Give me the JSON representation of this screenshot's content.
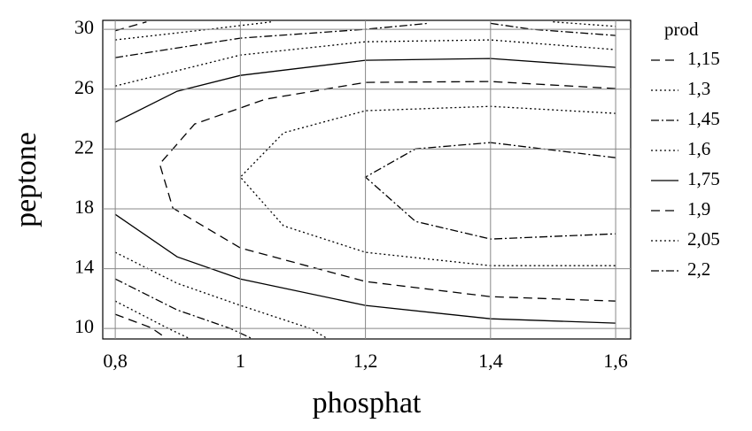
{
  "chart_data": {
    "type": "contour",
    "x_label": "phosphat",
    "y_label": "peptone",
    "legend_title": "prod",
    "xlim": [
      0.78,
      1.624
    ],
    "ylim": [
      9.3,
      30.6
    ],
    "xticks": [
      {
        "value": 0.8,
        "label": "0,8"
      },
      1,
      {
        "value": 1.2,
        "label": "1,2"
      },
      {
        "value": 1.4,
        "label": "1,4"
      },
      {
        "value": 1.6,
        "label": "1,6"
      }
    ],
    "yticks": [
      10,
      14,
      18,
      22,
      26,
      30
    ],
    "grid": true,
    "legend": "right",
    "color": "#000000",
    "series": [
      {
        "name": "1,15",
        "dash": "dashed",
        "x": [
          0.8,
          0.85,
          null,
          0.8,
          0.857,
          0.88
        ],
        "y": [
          29.9,
          30.5,
          null,
          10.95,
          10.06,
          9.4
        ]
      },
      {
        "name": "1,3",
        "dash": "dotted",
        "x": [
          0.8,
          0.95,
          1.05,
          null,
          1.5,
          1.6,
          null,
          0.8,
          0.885,
          0.92
        ],
        "y": [
          29.29,
          30.0,
          30.5,
          null,
          30.5,
          30.2,
          null,
          11.83,
          10.0,
          9.3
        ]
      },
      {
        "name": "1,45",
        "dash": "dashdot",
        "x": [
          0.8,
          1.0,
          1.2,
          1.3,
          null,
          1.4,
          1.466,
          1.6,
          null,
          0.8,
          0.899,
          0.984,
          1.02
        ],
        "y": [
          28.11,
          29.41,
          30.0,
          30.4,
          null,
          30.4,
          30.0,
          29.59,
          null,
          13.31,
          11.24,
          10.0,
          9.3
        ]
      },
      {
        "name": "1,6",
        "dash": "dotted",
        "x": [
          0.8,
          1.0,
          1.2,
          1.4,
          1.6,
          null,
          0.8,
          0.899,
          1.0,
          1.112,
          1.14
        ],
        "y": [
          26.21,
          28.28,
          29.17,
          29.29,
          28.64,
          null,
          15.09,
          13.02,
          11.54,
          10.0,
          9.3
        ]
      },
      {
        "name": "1,75",
        "dash": "solid",
        "x": [
          0.8,
          0.899,
          1.0,
          1.2,
          1.4,
          1.6,
          null,
          0.8,
          0.899,
          1.0,
          1.2,
          1.4,
          1.6
        ],
        "y": [
          23.79,
          25.86,
          26.92,
          27.93,
          28.05,
          27.46,
          null,
          17.63,
          14.79,
          13.31,
          11.54,
          10.65,
          10.36
        ]
      },
      {
        "name": "1,9",
        "dash": "dashed",
        "x": [
          1.6,
          1.4,
          1.2,
          1.04,
          0.927,
          0.871,
          0.892,
          1.0,
          1.2,
          1.4,
          1.6
        ],
        "y": [
          26.04,
          26.51,
          26.45,
          25.33,
          23.67,
          21.0,
          18.05,
          15.38,
          13.14,
          12.13,
          11.83
        ]
      },
      {
        "name": "2,05",
        "dash": "dotted",
        "x": [
          1.6,
          1.4,
          1.2,
          1.069,
          1.0,
          1.069,
          1.2,
          1.4,
          1.6
        ],
        "y": [
          24.38,
          24.85,
          24.56,
          23.08,
          20.12,
          16.86,
          15.09,
          14.2,
          14.2
        ]
      },
      {
        "name": "2,2",
        "dash": "dashdot",
        "x": [
          1.6,
          1.4,
          1.28,
          1.2,
          1.28,
          1.4,
          1.6
        ],
        "y": [
          21.42,
          22.43,
          22.01,
          20.12,
          17.16,
          15.98,
          16.33
        ]
      }
    ]
  }
}
